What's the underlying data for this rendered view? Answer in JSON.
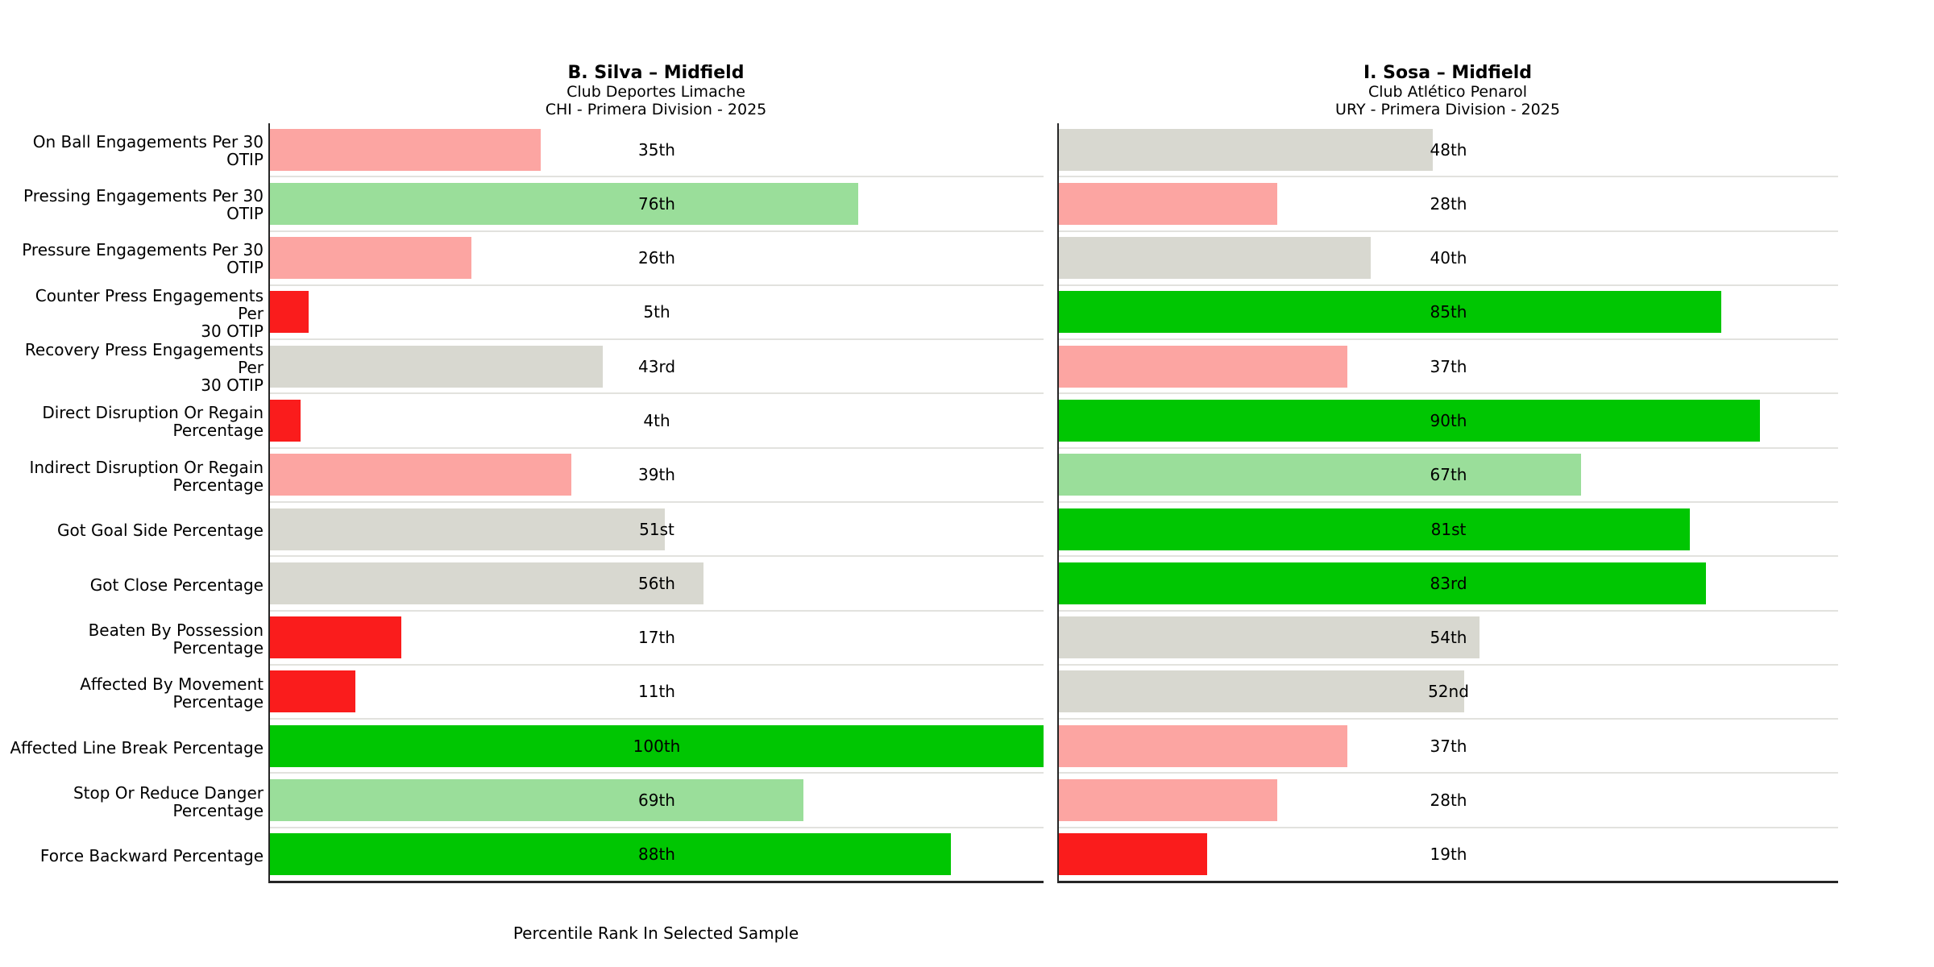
{
  "figure": {
    "background": "#ffffff"
  },
  "palette": {
    "very_low": "#fa1c1c",
    "low": "#fca5a2",
    "mid": "#d8d8d0",
    "high": "#9ade9a",
    "very_high": "#00c602",
    "spine": "#262626",
    "row_separator": "#e2e2de",
    "text": "#000000"
  },
  "thresholds": {
    "very_low_max": 20,
    "low_max": 39,
    "mid_max": 60,
    "high_max": 80
  },
  "chart_data": [
    {
      "type": "bar",
      "orientation": "horizontal",
      "title": "B. Silva – Midfield",
      "subtitle": "Club Deportes Limache",
      "subtitle2": "CHI - Primera Division - 2025",
      "xlabel": "Percentile Rank In Selected Sample",
      "xlim": [
        0,
        100
      ],
      "grid": "row-separators-only",
      "legend": "none",
      "categories": [
        "On Ball Engagements Per 30\nOTIP",
        "Pressing Engagements Per 30\nOTIP",
        "Pressure Engagements Per 30\nOTIP",
        "Counter Press Engagements Per\n30 OTIP",
        "Recovery Press Engagements Per\n30 OTIP",
        "Direct Disruption Or Regain\nPercentage",
        "Indirect Disruption Or Regain\nPercentage",
        "Got Goal Side Percentage",
        "Got Close Percentage",
        "Beaten By Possession\nPercentage",
        "Affected By Movement\nPercentage",
        "Affected Line Break Percentage",
        "Stop Or Reduce Danger\nPercentage",
        "Force Backward Percentage"
      ],
      "values": [
        35,
        76,
        26,
        5,
        43,
        4,
        39,
        51,
        56,
        17,
        11,
        100,
        69,
        88
      ],
      "value_labels": [
        "35th",
        "76th",
        "26th",
        "5th",
        "43rd",
        "4th",
        "39th",
        "51st",
        "56th",
        "17th",
        "11th",
        "100th",
        "69th",
        "88th"
      ]
    },
    {
      "type": "bar",
      "orientation": "horizontal",
      "title": "I. Sosa – Midfield",
      "subtitle": "Club Atlético Penarol",
      "subtitle2": "URY - Primera Division - 2025",
      "xlabel": "",
      "xlim": [
        0,
        100
      ],
      "grid": "row-separators-only",
      "legend": "none",
      "categories": [
        "On Ball Engagements Per 30\nOTIP",
        "Pressing Engagements Per 30\nOTIP",
        "Pressure Engagements Per 30\nOTIP",
        "Counter Press Engagements Per\n30 OTIP",
        "Recovery Press Engagements Per\n30 OTIP",
        "Direct Disruption Or Regain\nPercentage",
        "Indirect Disruption Or Regain\nPercentage",
        "Got Goal Side Percentage",
        "Got Close Percentage",
        "Beaten By Possession\nPercentage",
        "Affected By Movement\nPercentage",
        "Affected Line Break Percentage",
        "Stop Or Reduce Danger\nPercentage",
        "Force Backward Percentage"
      ],
      "values": [
        48,
        28,
        40,
        85,
        37,
        90,
        67,
        81,
        83,
        54,
        52,
        37,
        28,
        19
      ],
      "value_labels": [
        "48th",
        "28th",
        "40th",
        "85th",
        "37th",
        "90th",
        "67th",
        "81st",
        "83rd",
        "54th",
        "52nd",
        "37th",
        "28th",
        "19th"
      ]
    }
  ]
}
